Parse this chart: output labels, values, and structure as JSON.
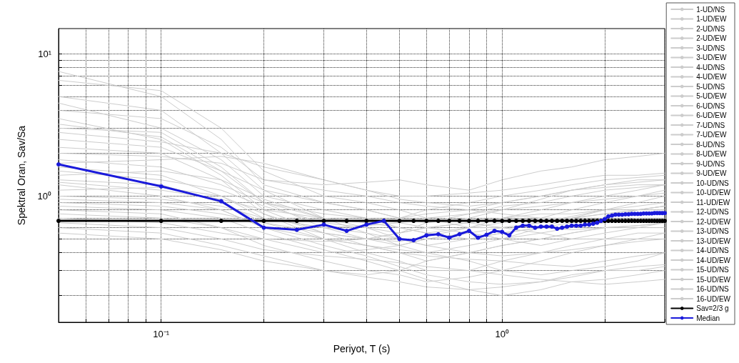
{
  "chart_data": {
    "type": "line",
    "xlabel": "Periyot, T (s)",
    "ylabel": "Spektral Oran, Sav/Sa",
    "log": "xy",
    "grid": true,
    "legend": "right",
    "line_style": "solid",
    "xlim": [
      0.05,
      3
    ],
    "ylim": [
      0.13,
      15
    ],
    "xticks": [
      {
        "value": 0.05,
        "label": null
      },
      {
        "value": 0.06,
        "label": null
      },
      {
        "value": 0.07,
        "label": null
      },
      {
        "value": 0.08,
        "label": null
      },
      {
        "value": 0.09,
        "label": null
      },
      {
        "value": 0.1,
        "label": "10⁻¹"
      },
      {
        "value": 0.2,
        "label": null
      },
      {
        "value": 0.3,
        "label": null
      },
      {
        "value": 0.4,
        "label": null
      },
      {
        "value": 0.5,
        "label": null
      },
      {
        "value": 0.6,
        "label": null
      },
      {
        "value": 0.7,
        "label": null
      },
      {
        "value": 0.8,
        "label": null
      },
      {
        "value": 0.9,
        "label": null
      },
      {
        "value": 1,
        "label": "10⁰"
      },
      {
        "value": 2,
        "label": null
      },
      {
        "value": 3,
        "label": null
      }
    ],
    "yticks": [
      {
        "value": 0.2,
        "label": null
      },
      {
        "value": 0.3,
        "label": null
      },
      {
        "value": 0.4,
        "label": null
      },
      {
        "value": 0.5,
        "label": null
      },
      {
        "value": 0.6,
        "label": null
      },
      {
        "value": 0.7,
        "label": null
      },
      {
        "value": 0.8,
        "label": null
      },
      {
        "value": 0.9,
        "label": null
      },
      {
        "value": 1,
        "label": "10⁰"
      },
      {
        "value": 2,
        "label": null
      },
      {
        "value": 3,
        "label": null
      },
      {
        "value": 4,
        "label": null
      },
      {
        "value": 5,
        "label": null
      },
      {
        "value": 6,
        "label": null
      },
      {
        "value": 7,
        "label": null
      },
      {
        "value": 8,
        "label": null
      },
      {
        "value": 9,
        "label": null
      },
      {
        "value": 10,
        "label": "10¹"
      }
    ],
    "x": [
      0.05,
      0.1,
      0.15,
      0.2,
      0.25,
      0.3,
      0.35,
      0.4,
      0.45,
      0.5,
      0.55,
      0.6,
      0.65,
      0.7,
      0.75,
      0.8,
      0.85,
      0.9,
      0.95,
      1.0,
      1.05,
      1.1,
      1.15,
      1.2,
      1.25,
      1.3,
      1.35,
      1.4,
      1.45,
      1.5,
      1.55,
      1.6,
      1.65,
      1.7,
      1.75,
      1.8,
      1.85,
      1.9,
      1.95,
      2.0,
      2.05,
      2.1,
      2.15,
      2.2,
      2.25,
      2.3,
      2.35,
      2.4,
      2.45,
      2.5,
      2.55,
      2.6,
      2.65,
      2.7,
      2.75,
      2.8,
      2.85,
      2.9,
      2.95,
      3.0
    ],
    "series": [
      {
        "name": "1-UD/NS",
        "color": "#cccccc",
        "x": [
          0.05,
          0.1,
          0.15,
          0.2,
          0.3,
          0.4,
          0.5,
          0.6,
          0.8,
          1.0,
          1.3,
          1.6,
          2.0,
          2.5,
          3.0
        ],
        "values": [
          7.5,
          5,
          2.5,
          1.2,
          0.9,
          0.8,
          0.7,
          0.75,
          0.8,
          0.9,
          1.0,
          1.1,
          1.2,
          1.3,
          1.3
        ]
      },
      {
        "name": "1-UD/EW",
        "color": "#cccccc",
        "x": [
          0.05,
          0.1,
          0.15,
          0.2,
          0.3,
          0.4,
          0.5,
          0.6,
          0.8,
          1.0,
          1.3,
          1.6,
          2.0,
          2.5,
          3.0
        ],
        "values": [
          6.5,
          5.5,
          3,
          1.5,
          1.0,
          0.9,
          0.8,
          0.7,
          0.6,
          0.6,
          0.65,
          0.7,
          0.8,
          0.9,
          1.0
        ]
      },
      {
        "name": "2-UD/NS",
        "color": "#cccccc",
        "x": [
          0.05,
          0.1,
          0.15,
          0.2,
          0.3,
          0.4,
          0.5,
          0.6,
          0.8,
          1.0,
          1.3,
          1.6,
          2.0,
          2.5,
          3.0
        ],
        "values": [
          5,
          4,
          2,
          1.1,
          0.7,
          0.6,
          0.5,
          0.45,
          0.5,
          0.55,
          0.6,
          0.65,
          0.7,
          0.8,
          0.85
        ]
      },
      {
        "name": "2-UD/EW",
        "color": "#cccccc",
        "x": [
          0.05,
          0.1,
          0.15,
          0.2,
          0.3,
          0.4,
          0.5,
          0.6,
          0.8,
          1.0,
          1.3,
          1.6,
          2.0,
          2.5,
          3.0
        ],
        "values": [
          4.5,
          3,
          1.8,
          1.0,
          0.8,
          0.7,
          0.6,
          0.55,
          0.6,
          0.7,
          0.8,
          0.9,
          1.0,
          1.1,
          1.2
        ]
      },
      {
        "name": "3-UD/NS",
        "color": "#cccccc",
        "x": [
          0.05,
          0.1,
          0.15,
          0.2,
          0.3,
          0.4,
          0.5,
          0.6,
          0.8,
          1.0,
          1.3,
          1.6,
          2.0,
          2.5,
          3.0
        ],
        "values": [
          4,
          3.5,
          2.2,
          1.3,
          1.1,
          1.0,
          0.9,
          0.85,
          0.8,
          0.75,
          0.7,
          0.7,
          0.75,
          0.8,
          0.8
        ]
      },
      {
        "name": "3-UD/EW",
        "color": "#cccccc",
        "x": [
          0.05,
          0.1,
          0.15,
          0.2,
          0.3,
          0.4,
          0.5,
          0.6,
          0.8,
          1.0,
          1.3,
          1.6,
          2.0,
          2.5,
          3.0
        ],
        "values": [
          3.5,
          2.5,
          1.4,
          0.8,
          0.55,
          0.45,
          0.4,
          0.35,
          0.4,
          0.45,
          0.5,
          0.55,
          0.6,
          0.6,
          0.65
        ]
      },
      {
        "name": "4-UD/NS",
        "color": "#cccccc",
        "x": [
          0.05,
          0.1,
          0.15,
          0.2,
          0.3,
          0.4,
          0.5,
          0.6,
          0.8,
          1.0,
          1.3,
          1.6,
          2.0,
          2.5,
          3.0
        ],
        "values": [
          3,
          2.8,
          1.6,
          0.9,
          0.6,
          0.5,
          0.45,
          0.5,
          0.55,
          0.5,
          0.45,
          0.5,
          0.55,
          0.6,
          0.6
        ]
      },
      {
        "name": "4-UD/EW",
        "color": "#cccccc",
        "x": [
          0.05,
          0.1,
          0.15,
          0.2,
          0.3,
          0.4,
          0.5,
          0.6,
          0.8,
          1.0,
          1.3,
          1.6,
          2.0,
          2.5,
          3.0
        ],
        "values": [
          2.5,
          2.2,
          1.5,
          1.1,
          0.9,
          0.8,
          0.7,
          0.65,
          0.7,
          0.8,
          0.95,
          1.1,
          1.2,
          1.25,
          1.3
        ]
      },
      {
        "name": "5-UD/NS",
        "color": "#cccccc",
        "x": [
          0.05,
          0.1,
          0.15,
          0.2,
          0.3,
          0.4,
          0.5,
          0.6,
          0.8,
          1.0,
          1.3,
          1.6,
          2.0,
          2.5,
          3.0
        ],
        "values": [
          2.2,
          2,
          1.3,
          0.75,
          0.5,
          0.4,
          0.35,
          0.3,
          0.3,
          0.35,
          0.4,
          0.45,
          0.5,
          0.5,
          0.55
        ]
      },
      {
        "name": "5-UD/EW",
        "color": "#cccccc",
        "x": [
          0.05,
          0.1,
          0.15,
          0.2,
          0.3,
          0.4,
          0.5,
          0.6,
          0.8,
          1.0,
          1.3,
          1.6,
          2.0,
          2.5,
          3.0
        ],
        "values": [
          2,
          1.9,
          1.7,
          1.3,
          1.2,
          1.25,
          1.3,
          1.2,
          1.1,
          1.3,
          1.5,
          1.6,
          1.8,
          1.9,
          2.0
        ]
      },
      {
        "name": "6-UD/NS",
        "color": "#cccccc",
        "x": [
          0.05,
          0.1,
          0.15,
          0.2,
          0.3,
          0.4,
          0.5,
          0.6,
          0.8,
          1.0,
          1.3,
          1.6,
          2.0,
          2.5,
          3.0
        ],
        "values": [
          1.8,
          1.6,
          1.2,
          0.9,
          0.75,
          0.7,
          0.65,
          0.6,
          0.55,
          0.5,
          0.55,
          0.6,
          0.65,
          0.7,
          0.7
        ]
      },
      {
        "name": "6-UD/EW",
        "color": "#cccccc",
        "x": [
          0.05,
          0.1,
          0.15,
          0.2,
          0.3,
          0.4,
          0.5,
          0.6,
          0.8,
          1.0,
          1.3,
          1.6,
          2.0,
          2.5,
          3.0
        ],
        "values": [
          1.7,
          1.8,
          1.9,
          1.7,
          1.3,
          1.1,
          0.95,
          0.9,
          0.85,
          0.9,
          1.0,
          1.1,
          1.15,
          1.2,
          1.2
        ]
      },
      {
        "name": "7-UD/NS",
        "color": "#cccccc",
        "x": [
          0.05,
          0.1,
          0.15,
          0.2,
          0.3,
          0.4,
          0.5,
          0.6,
          0.8,
          1.0,
          1.3,
          1.6,
          2.0,
          2.5,
          3.0
        ],
        "values": [
          1.6,
          1.4,
          1.0,
          0.7,
          0.6,
          0.55,
          0.5,
          0.45,
          0.4,
          0.38,
          0.4,
          0.42,
          0.45,
          0.5,
          0.5
        ]
      },
      {
        "name": "7-UD/EW",
        "color": "#cccccc",
        "x": [
          0.05,
          0.1,
          0.15,
          0.2,
          0.3,
          0.4,
          0.5,
          0.6,
          0.8,
          1.0,
          1.3,
          1.6,
          2.0,
          2.5,
          3.0
        ],
        "values": [
          1.5,
          1.3,
          1.1,
          0.85,
          0.65,
          0.6,
          0.55,
          0.6,
          0.65,
          0.7,
          0.75,
          0.75,
          0.8,
          0.8,
          0.85
        ]
      },
      {
        "name": "8-UD/NS",
        "color": "#cccccc",
        "x": [
          0.05,
          0.1,
          0.15,
          0.2,
          0.3,
          0.4,
          0.5,
          0.6,
          0.8,
          1.0,
          1.3,
          1.6,
          2.0,
          2.5,
          3.0
        ],
        "values": [
          1.4,
          1.5,
          1.3,
          0.95,
          0.7,
          0.55,
          0.45,
          0.4,
          0.35,
          0.3,
          0.28,
          0.3,
          0.32,
          0.35,
          0.4
        ]
      },
      {
        "name": "8-UD/EW",
        "color": "#cccccc",
        "x": [
          0.05,
          0.1,
          0.15,
          0.2,
          0.3,
          0.4,
          0.5,
          0.6,
          0.8,
          1.0,
          1.3,
          1.6,
          2.0,
          2.5,
          3.0
        ],
        "values": [
          1.3,
          1.2,
          0.9,
          0.65,
          0.5,
          0.45,
          0.42,
          0.4,
          0.45,
          0.5,
          0.6,
          0.7,
          0.75,
          0.8,
          0.85
        ]
      },
      {
        "name": "9-UD/NS",
        "color": "#cccccc",
        "x": [
          0.05,
          0.1,
          0.15,
          0.2,
          0.3,
          0.4,
          0.5,
          0.6,
          0.8,
          1.0,
          1.3,
          1.6,
          2.0,
          2.5,
          3.0
        ],
        "values": [
          1.25,
          1.1,
          0.95,
          0.8,
          0.7,
          0.65,
          0.6,
          0.55,
          0.5,
          0.55,
          0.6,
          0.58,
          0.6,
          0.62,
          0.65
        ]
      },
      {
        "name": "9-UD/EW",
        "color": "#cccccc",
        "x": [
          0.05,
          0.1,
          0.15,
          0.2,
          0.3,
          0.4,
          0.5,
          0.6,
          0.8,
          1.0,
          1.3,
          1.6,
          2.0,
          2.5,
          3.0
        ],
        "values": [
          1.2,
          1.0,
          0.8,
          0.6,
          0.45,
          0.38,
          0.32,
          0.28,
          0.25,
          0.24,
          0.25,
          0.27,
          0.3,
          0.3,
          0.32
        ]
      },
      {
        "name": "10-UD/NS",
        "color": "#cccccc",
        "x": [
          0.05,
          0.1,
          0.15,
          0.2,
          0.3,
          0.4,
          0.5,
          0.6,
          0.8,
          1.0,
          1.3,
          1.6,
          2.0,
          2.5,
          3.0
        ],
        "values": [
          1.1,
          1.15,
          1.0,
          0.75,
          0.55,
          0.5,
          0.48,
          0.52,
          0.6,
          0.65,
          0.7,
          0.8,
          0.9,
          1.0,
          1.05
        ]
      },
      {
        "name": "10-UD/EW",
        "color": "#cccccc",
        "x": [
          0.05,
          0.1,
          0.15,
          0.2,
          0.3,
          0.4,
          0.5,
          0.6,
          0.8,
          1.0,
          1.3,
          1.6,
          2.0,
          2.5,
          3.0
        ],
        "values": [
          1.0,
          0.95,
          0.85,
          0.7,
          0.6,
          0.62,
          0.65,
          0.7,
          0.75,
          0.8,
          0.85,
          0.9,
          0.95,
          1.0,
          1.1
        ]
      },
      {
        "name": "11-UD/EW",
        "color": "#cccccc",
        "x": [
          0.05,
          0.1,
          0.15,
          0.2,
          0.3,
          0.4,
          0.5,
          0.6,
          0.8,
          1.0,
          1.3,
          1.6,
          2.0,
          2.5,
          3.0
        ],
        "values": [
          0.95,
          0.9,
          0.8,
          0.6,
          0.5,
          0.45,
          0.4,
          0.38,
          0.36,
          0.35,
          0.33,
          0.32,
          0.35,
          0.38,
          0.4
        ]
      },
      {
        "name": "12-UD/NS",
        "color": "#cccccc",
        "x": [
          0.05,
          0.1,
          0.15,
          0.2,
          0.3,
          0.4,
          0.5,
          0.6,
          0.8,
          1.0,
          1.3,
          1.6,
          2.0,
          2.5,
          3.0
        ],
        "values": [
          0.9,
          0.85,
          0.75,
          0.65,
          0.55,
          0.5,
          0.55,
          0.6,
          0.65,
          0.6,
          0.55,
          0.5,
          0.5,
          0.55,
          0.55
        ]
      },
      {
        "name": "12-UD/EW",
        "color": "#cccccc",
        "x": [
          0.05,
          0.1,
          0.15,
          0.2,
          0.3,
          0.4,
          0.5,
          0.6,
          0.8,
          1.0,
          1.3,
          1.6,
          2.0,
          2.5,
          3.0
        ],
        "values": [
          0.85,
          0.8,
          0.7,
          0.55,
          0.42,
          0.35,
          0.3,
          0.26,
          0.22,
          0.2,
          0.22,
          0.25,
          0.26,
          0.28,
          0.3
        ]
      },
      {
        "name": "13-UD/NS",
        "color": "#cccccc",
        "x": [
          0.05,
          0.1,
          0.15,
          0.2,
          0.3,
          0.4,
          0.5,
          0.6,
          0.8,
          1.0,
          1.3,
          1.6,
          2.0,
          2.5,
          3.0
        ],
        "values": [
          0.8,
          0.75,
          0.6,
          0.5,
          0.4,
          0.42,
          0.45,
          0.5,
          0.55,
          0.6,
          0.65,
          0.72,
          0.8,
          0.85,
          0.9
        ]
      },
      {
        "name": "13-UD/EW",
        "color": "#cccccc",
        "x": [
          0.05,
          0.1,
          0.15,
          0.2,
          0.3,
          0.4,
          0.5,
          0.6,
          0.8,
          1.0,
          1.3,
          1.6,
          2.0,
          2.5,
          3.0
        ],
        "values": [
          0.75,
          0.7,
          0.6,
          0.45,
          0.35,
          0.3,
          0.28,
          0.25,
          0.27,
          0.3,
          0.35,
          0.4,
          0.45,
          0.48,
          0.5
        ]
      },
      {
        "name": "14-UD/NS",
        "color": "#cccccc",
        "x": [
          0.05,
          0.1,
          0.15,
          0.2,
          0.3,
          0.4,
          0.5,
          0.6,
          0.8,
          1.0,
          1.3,
          1.6,
          2.0,
          2.5,
          3.0
        ],
        "values": [
          0.7,
          0.65,
          0.55,
          0.5,
          0.48,
          0.5,
          0.55,
          0.65,
          0.75,
          0.85,
          0.9,
          1.0,
          1.1,
          1.15,
          1.2
        ]
      },
      {
        "name": "14-UD/EW",
        "color": "#cccccc",
        "x": [
          0.05,
          0.1,
          0.15,
          0.2,
          0.3,
          0.4,
          0.5,
          0.6,
          0.8,
          1.0,
          1.3,
          1.6,
          2.0,
          2.5,
          3.0
        ],
        "values": [
          0.65,
          0.6,
          0.5,
          0.42,
          0.38,
          0.36,
          0.34,
          0.32,
          0.3,
          0.28,
          0.26,
          0.25,
          0.24,
          0.25,
          0.26
        ]
      },
      {
        "name": "15-UD/NS",
        "color": "#cccccc",
        "x": [
          0.05,
          0.1,
          0.15,
          0.2,
          0.3,
          0.4,
          0.5,
          0.6,
          0.8,
          1.0,
          1.3,
          1.6,
          2.0,
          2.5,
          3.0
        ],
        "values": [
          0.6,
          0.55,
          0.45,
          0.38,
          0.3,
          0.27,
          0.25,
          0.23,
          0.22,
          0.23,
          0.25,
          0.28,
          0.3,
          0.32,
          0.33
        ]
      },
      {
        "name": "15-UD/EW",
        "color": "#cccccc",
        "x": [
          0.05,
          0.1,
          0.15,
          0.2,
          0.3,
          0.4,
          0.5,
          0.6,
          0.8,
          1.0,
          1.3,
          1.6,
          2.0,
          2.5,
          3.0
        ],
        "values": [
          0.55,
          0.5,
          0.42,
          0.35,
          0.3,
          0.28,
          0.3,
          0.35,
          0.4,
          0.45,
          0.5,
          0.55,
          0.6,
          0.62,
          0.65
        ]
      },
      {
        "name": "16-UD/NS",
        "color": "#cccccc",
        "x": [
          0.05,
          0.1,
          0.15,
          0.2,
          0.3,
          0.4,
          0.5,
          0.6,
          0.8,
          1.0,
          1.3,
          1.6,
          2.0,
          2.5,
          3.0
        ],
        "values": [
          2.8,
          2.4,
          2,
          1.6,
          1.3,
          1.1,
          1.0,
          1.0,
          1.05,
          1.1,
          1.2,
          1.3,
          1.4,
          1.4,
          1.45
        ]
      },
      {
        "name": "16-UD/EW",
        "color": "#cccccc",
        "x": [
          0.05,
          0.1,
          0.15,
          0.2,
          0.3,
          0.4,
          0.5,
          0.6,
          0.8,
          1.0,
          1.3,
          1.6,
          2.0,
          2.5,
          3.0
        ],
        "values": [
          3.2,
          2.6,
          1.5,
          0.9,
          0.7,
          0.65,
          0.7,
          0.8,
          0.9,
          1.0,
          1.1,
          1.2,
          1.3,
          1.35,
          1.4
        ]
      },
      {
        "name": "Sav=2/3 g",
        "color": "#000000",
        "marker": "circle",
        "values": [
          0.67,
          0.67,
          0.67,
          0.67,
          0.67,
          0.67,
          0.67,
          0.67,
          0.67,
          0.67,
          0.67,
          0.67,
          0.67,
          0.67,
          0.67,
          0.67,
          0.67,
          0.67,
          0.67,
          0.67,
          0.67,
          0.67,
          0.67,
          0.67,
          0.67,
          0.67,
          0.67,
          0.67,
          0.67,
          0.67,
          0.67,
          0.67,
          0.67,
          0.67,
          0.67,
          0.67,
          0.67,
          0.67,
          0.67,
          0.67,
          0.67,
          0.67,
          0.67,
          0.67,
          0.67,
          0.67,
          0.67,
          0.67,
          0.67,
          0.67,
          0.67,
          0.67,
          0.67,
          0.67,
          0.67,
          0.67,
          0.67,
          0.67,
          0.67,
          0.67
        ]
      },
      {
        "name": "Median",
        "color": "#1a1adb",
        "marker": "circle",
        "values": [
          1.67,
          1.17,
          0.92,
          0.6,
          0.58,
          0.63,
          0.57,
          0.63,
          0.67,
          0.5,
          0.49,
          0.53,
          0.54,
          0.51,
          0.54,
          0.57,
          0.51,
          0.535,
          0.57,
          0.56,
          0.53,
          0.6,
          0.62,
          0.62,
          0.6,
          0.61,
          0.61,
          0.61,
          0.59,
          0.6,
          0.61,
          0.62,
          0.62,
          0.62,
          0.63,
          0.63,
          0.64,
          0.65,
          0.67,
          0.69,
          0.72,
          0.73,
          0.74,
          0.74,
          0.74,
          0.745,
          0.745,
          0.75,
          0.75,
          0.75,
          0.75,
          0.755,
          0.755,
          0.755,
          0.755,
          0.76,
          0.76,
          0.76,
          0.76,
          0.76
        ]
      }
    ]
  }
}
